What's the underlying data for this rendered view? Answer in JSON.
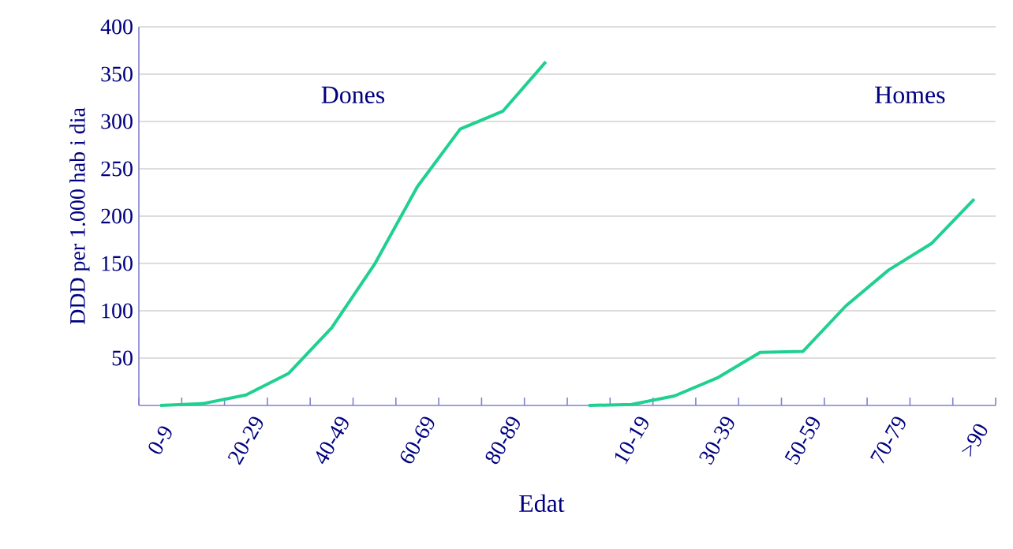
{
  "chart_data": {
    "type": "line",
    "xlabel": "Edat",
    "ylabel": "DDD per 1.000 hab i dia",
    "categories": [
      "0-9",
      null,
      "20-29",
      null,
      "40-49",
      null,
      "60-69",
      null,
      "80-89",
      null,
      null,
      "10-19",
      null,
      "30-39",
      null,
      "50-59",
      null,
      "70-79",
      null,
      ">90"
    ],
    "series": [
      {
        "color": "#20d090",
        "values": [
          0,
          2,
          11,
          34,
          82,
          149,
          231,
          292,
          311,
          363,
          null,
          null,
          null,
          null,
          null,
          null,
          null,
          null,
          null,
          null
        ]
      },
      {
        "color": "#20d090",
        "values": [
          null,
          null,
          null,
          null,
          null,
          null,
          null,
          null,
          null,
          null,
          0,
          1,
          10,
          29,
          56,
          57,
          105,
          143,
          171,
          218
        ]
      }
    ],
    "annotations": [
      "Dones",
      "Homes"
    ],
    "ylim": [
      0,
      400
    ],
    "yticks": [
      50,
      100,
      150,
      200,
      250,
      300,
      350,
      400
    ],
    "grid": "y"
  }
}
